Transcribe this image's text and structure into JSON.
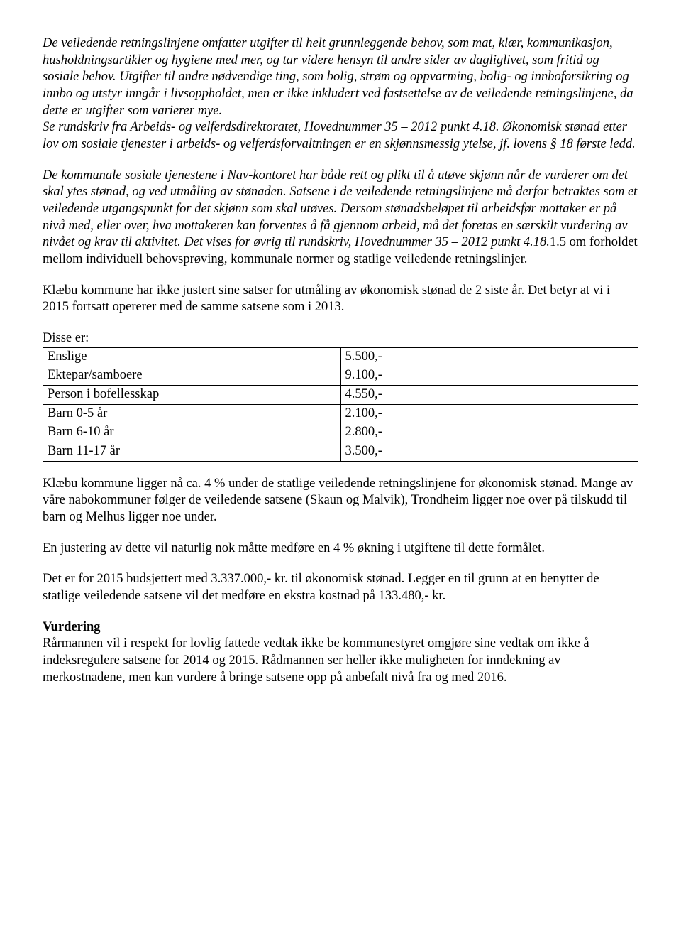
{
  "para1": "De veiledende retningslinjene omfatter utgifter til helt grunnleggende behov, som mat, klær, kommunikasjon, husholdningsartikler og hygiene med mer, og tar videre hensyn til andre sider av dagliglivet, som fritid og sosiale behov. Utgifter til andre nødvendige ting, som bolig, strøm og oppvarming, bolig- og innboforsikring og innbo og utstyr inngår i livsoppholdet, men er ikke inkludert ved fastsettelse av de veiledende retningslinjene, da dette er utgifter som varierer mye.",
  "para1b": "Se rundskriv fra Arbeids- og velferdsdirektoratet, Hovednummer 35 – 2012 punkt 4.18. Økonomisk stønad etter lov om sosiale tjenester i arbeids- og velferdsforvaltningen er en skjønnsmessig ytelse, jf. lovens § 18 første ledd.",
  "para2a": "De kommunale sosiale tjenestene i Nav-kontoret har både rett og plikt til å utøve skjønn når de vurderer om det skal ytes stønad, og ved utmåling av stønaden. Satsene i de veiledende retningslinjene må derfor betraktes som et veiledende utgangspunkt for det skjønn som skal utøves. Dersom stønadsbeløpet til arbeidsfør mottaker er på nivå med, eller over, hva mottakeren kan forventes å få gjennom arbeid, må det foretas en særskilt vurdering av nivået og krav til aktivitet. Det vises for øvrig til rundskriv, Hovednummer 35 – 2012 punkt 4.18.",
  "para2b": "1.5 om forholdet mellom individuell behovsprøving, kommunale normer og statlige veiledende retningslinjer.",
  "para3": "Klæbu kommune har ikke justert sine satser for utmåling av økonomisk stønad de 2 siste år. Det betyr at vi i 2015 fortsatt opererer med de samme satsene som i 2013.",
  "table_intro": "Disse er:",
  "table": {
    "rows": [
      [
        "Enslige",
        "5.500,-"
      ],
      [
        "Ektepar/samboere",
        "9.100,-"
      ],
      [
        "Person i bofellesskap",
        "4.550,-"
      ],
      [
        "Barn 0-5 år",
        "2.100,-"
      ],
      [
        "Barn 6-10 år",
        "2.800,-"
      ],
      [
        "Barn 11-17 år",
        "3.500,-"
      ]
    ]
  },
  "para4": "Klæbu kommune ligger nå ca. 4 % under de statlige veiledende retningslinjene for økonomisk stønad. Mange av våre nabokommuner følger de veiledende satsene (Skaun og Malvik), Trondheim ligger noe over på tilskudd til barn og Melhus ligger noe under.",
  "para5": "En justering av dette vil naturlig nok måtte medføre en 4 % økning i utgiftene til dette formålet.",
  "para6": "Det er for 2015 budsjettert med 3.337.000,- kr. til økonomisk stønad.  Legger en til grunn at en benytter de statlige veiledende satsene vil det medføre en ekstra kostnad på 133.480,- kr.",
  "heading": "Vurdering",
  "para7": "Rårmannen vil i respekt for lovlig fattede vedtak ikke be kommunestyret omgjøre sine vedtak om ikke å indeksregulere satsene for 2014 og 2015. Rådmannen ser heller ikke muligheten for inndekning av merkostnadene, men kan vurdere å bringe satsene opp på anbefalt nivå fra og med 2016."
}
